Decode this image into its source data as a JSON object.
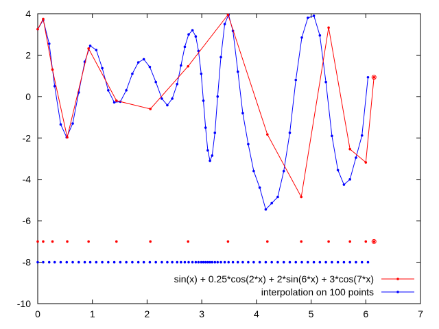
{
  "chart_data": {
    "type": "line",
    "title": "",
    "xlabel": "",
    "ylabel": "",
    "xlim": [
      0,
      7
    ],
    "ylim": [
      -10,
      4
    ],
    "xticks": [
      "0",
      "1",
      "2",
      "3",
      "4",
      "5",
      "6",
      "7"
    ],
    "yticks": [
      "4",
      "2",
      "0",
      "-2",
      "-4",
      "-6",
      "-8",
      "-10"
    ],
    "grid": false,
    "legend_position": "bottom-right",
    "series": [
      {
        "name": "sin(x) + 0.25*cos(2*x) + 2*sin(6*x) + 3*cos(7*x)",
        "color": "#ff0000",
        "x": [
          0,
          0.1,
          0.27,
          0.54,
          0.93,
          1.44,
          2.06,
          2.75,
          3.48,
          4.2,
          4.82,
          5.32,
          5.71,
          6.0,
          6.15
        ],
        "y": [
          3.25,
          3.75,
          1.3,
          -1.97,
          2.32,
          -0.2,
          -0.6,
          1.46,
          3.95,
          -1.83,
          -4.85,
          3.33,
          -2.54,
          -3.18,
          0.93
        ],
        "marker_row_y": -7
      },
      {
        "name": "interpolation on 100 points",
        "color": "#0000ff",
        "x": [
          0,
          0.1,
          0.21,
          0.31,
          0.42,
          0.53,
          0.64,
          0.75,
          0.86,
          0.96,
          1.07,
          1.18,
          1.29,
          1.4,
          1.51,
          1.62,
          1.73,
          1.84,
          1.94,
          2.05,
          2.16,
          2.27,
          2.37,
          2.46,
          2.55,
          2.62,
          2.69,
          2.76,
          2.83,
          2.89,
          2.94,
          2.99,
          3.03,
          3.07,
          3.11,
          3.15,
          3.19,
          3.24,
          3.29,
          3.35,
          3.42,
          3.49,
          3.57,
          3.66,
          3.75,
          3.85,
          3.95,
          4.06,
          4.17,
          4.28,
          4.39,
          4.5,
          4.61,
          4.72,
          4.83,
          4.94,
          5.05,
          5.16,
          5.27,
          5.38,
          5.49,
          5.6,
          5.71,
          5.82,
          5.93,
          6.04
        ],
        "y": [
          3.25,
          3.7,
          2.55,
          0.5,
          -1.35,
          -1.97,
          -1.3,
          0.2,
          1.68,
          2.45,
          2.25,
          1.37,
          0.3,
          -0.28,
          -0.25,
          0.3,
          1.1,
          1.65,
          1.8,
          1.43,
          0.7,
          -0.1,
          -0.42,
          -0.1,
          0.6,
          1.5,
          2.4,
          3.0,
          3.2,
          2.9,
          2.2,
          1.1,
          -0.2,
          -1.5,
          -2.6,
          -3.1,
          -2.85,
          -1.75,
          0.0,
          1.9,
          3.5,
          3.95,
          3.17,
          1.2,
          -0.8,
          -2.3,
          -3.6,
          -4.4,
          -5.45,
          -5.15,
          -4.85,
          -3.6,
          -1.75,
          0.8,
          2.85,
          3.8,
          3.9,
          2.95,
          0.7,
          -1.9,
          -3.55,
          -4.25,
          -4.0,
          -2.95,
          -1.88,
          0.93
        ],
        "marker_row_y": -8
      }
    ]
  }
}
